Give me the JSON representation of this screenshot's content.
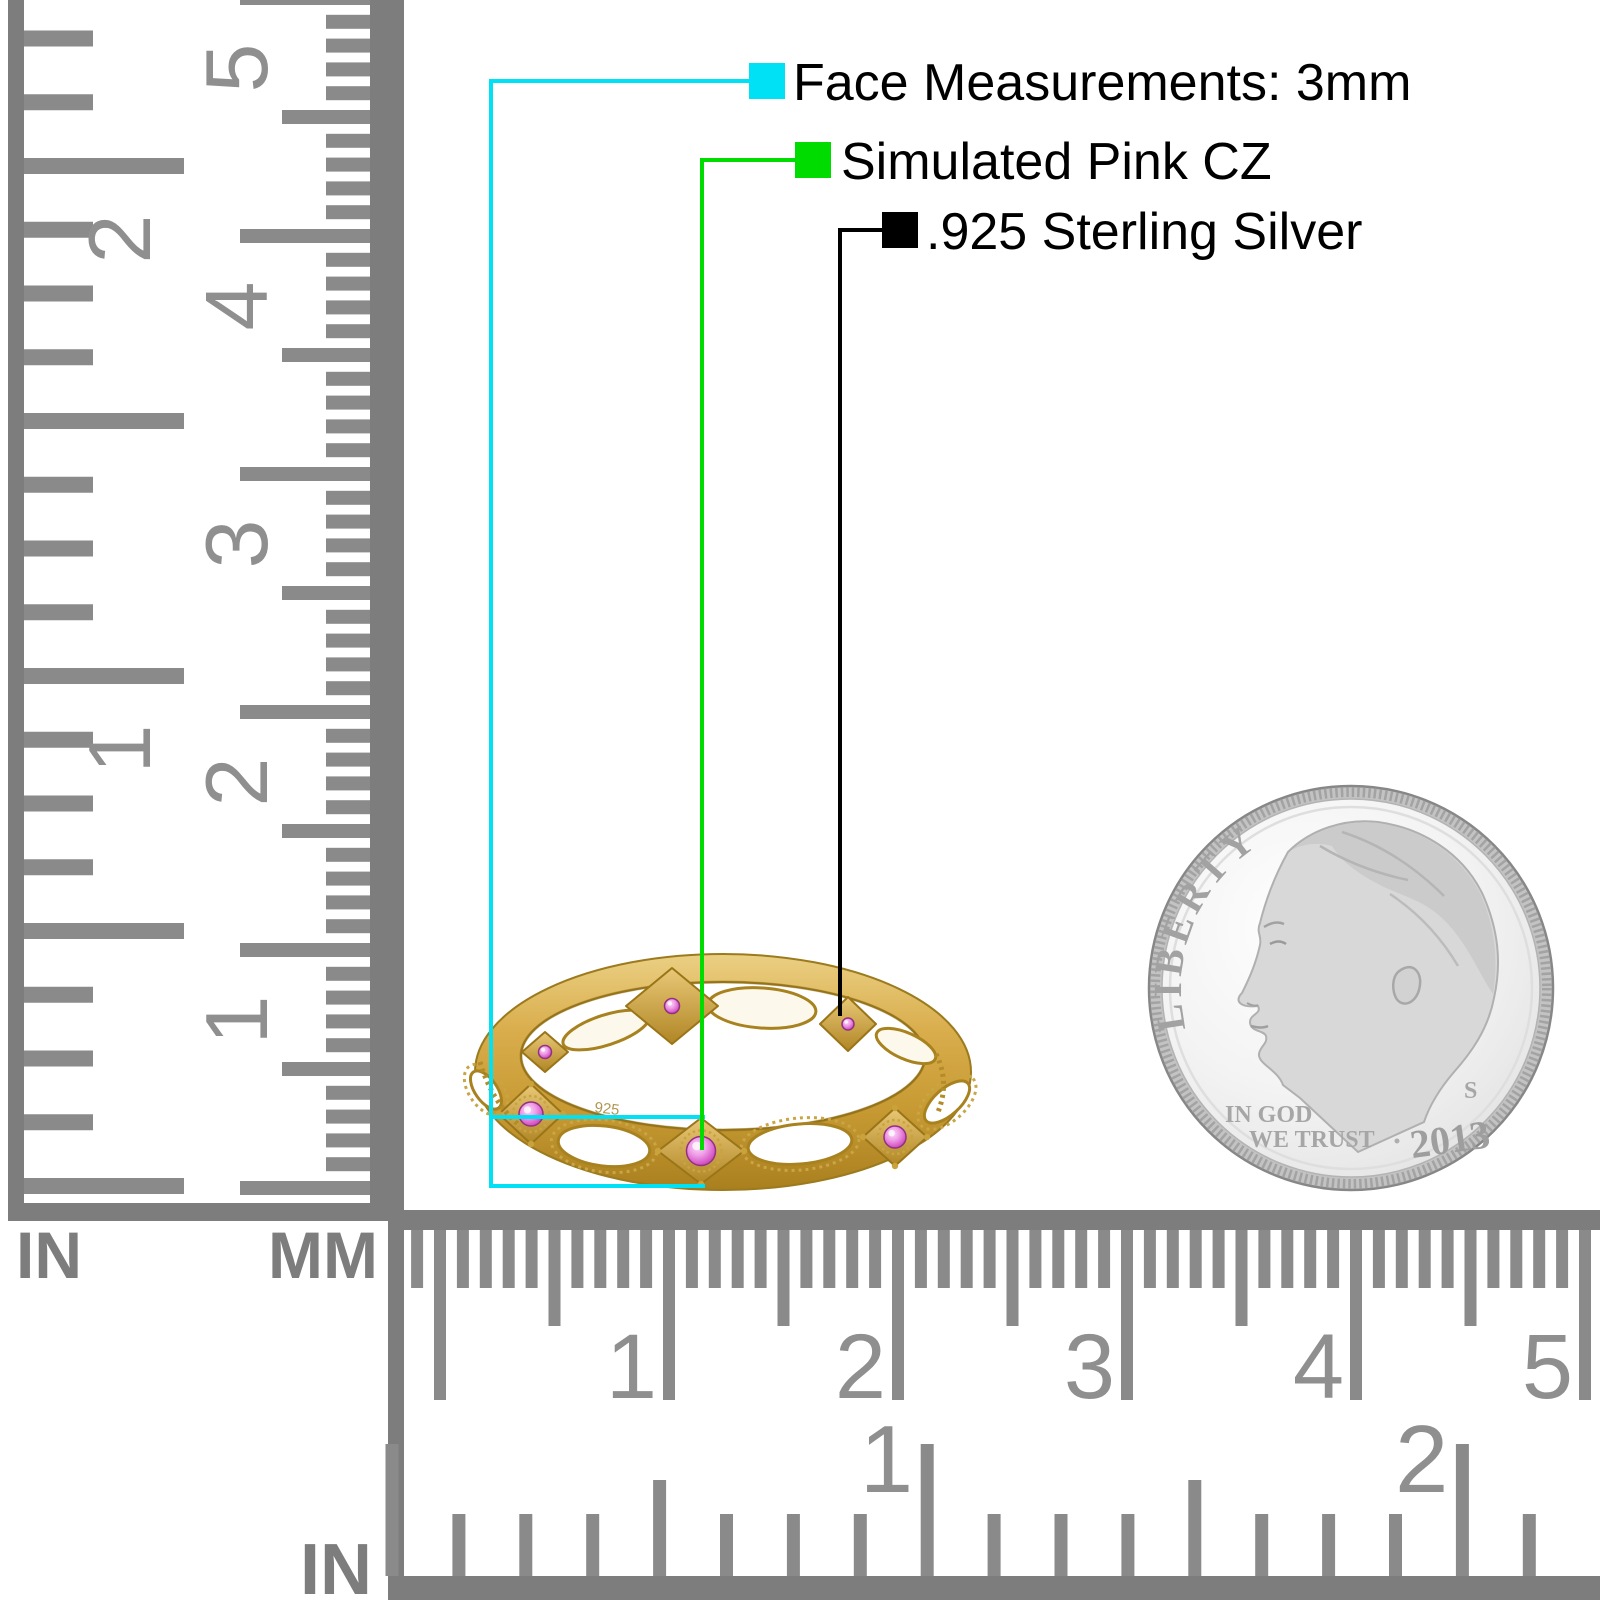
{
  "page": {
    "background": "#ffffff"
  },
  "callouts": {
    "items": [
      {
        "id": "face",
        "label": "Face Measurements: 3mm",
        "color": "#00e1f6"
      },
      {
        "id": "stone",
        "label": "Simulated Pink CZ",
        "color": "#00dc00"
      },
      {
        "id": "metal",
        "label": ".925 Sterling Silver",
        "color": "#000000"
      }
    ]
  },
  "left_ruler": {
    "in_label": "IN",
    "mm_label": "MM",
    "in_numbers": [
      "1",
      "2"
    ],
    "mm_numbers": [
      "1",
      "2",
      "3",
      "4",
      "5"
    ]
  },
  "bottom_ruler": {
    "in_label": "IN",
    "mm_numbers": [
      "1",
      "2",
      "3",
      "4",
      "5"
    ],
    "in_numbers": [
      "1",
      "2"
    ]
  },
  "ring": {
    "stamp": "925",
    "stone_count": 6,
    "gold_light": "#edd289",
    "gold_mid": "#d2a545",
    "gold_dark": "#a67c1c",
    "stone_light": "#f7b9ef",
    "stone_mid": "#e070d4",
    "stone_dark": "#a93b9b"
  },
  "coin": {
    "legend": "LIBERTY",
    "motto_line1": "IN GOD",
    "motto_line2": "WE TRUST",
    "mint_mark": "S",
    "year": "2013"
  },
  "colors": {
    "ruler_marks": "#8a8a8a",
    "ruler_bars": "#7d7d7d",
    "coin_silver": "#e9e9e9"
  }
}
